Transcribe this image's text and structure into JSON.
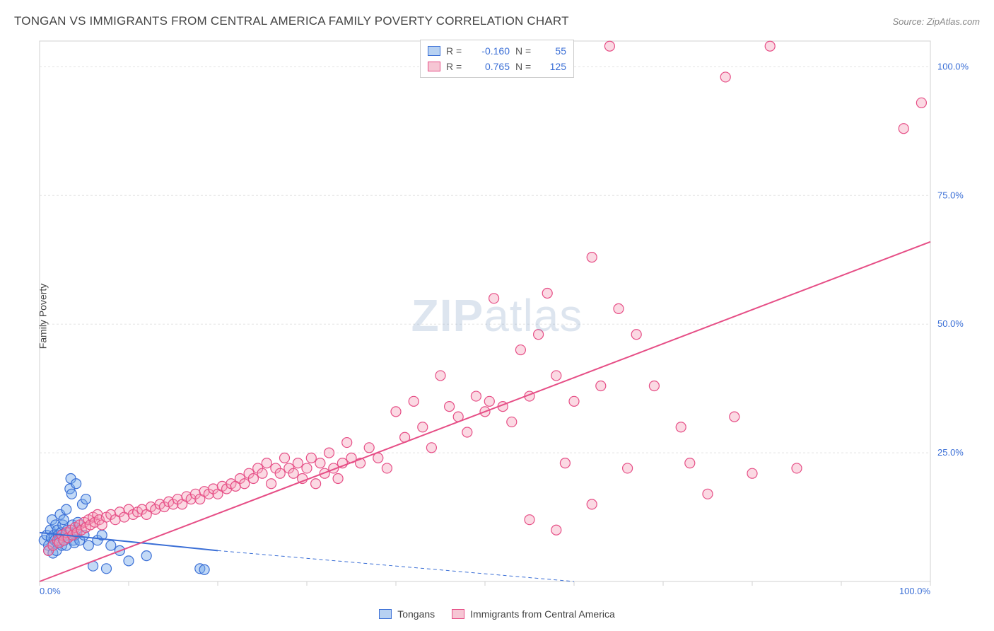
{
  "header": {
    "title": "TONGAN VS IMMIGRANTS FROM CENTRAL AMERICA FAMILY POVERTY CORRELATION CHART",
    "source": "Source: ZipAtlas.com"
  },
  "watermark": {
    "bold": "ZIP",
    "light": "atlas"
  },
  "chart": {
    "type": "scatter",
    "ylabel": "Family Poverty",
    "xlim": [
      0,
      100
    ],
    "ylim": [
      0,
      105
    ],
    "x_ticks": [
      0,
      10,
      20,
      30,
      40,
      50,
      60,
      70,
      80,
      90,
      100
    ],
    "x_tick_labels": {
      "0": "0.0%",
      "100": "100.0%"
    },
    "y_grid": [
      25,
      50,
      75,
      100
    ],
    "y_tick_labels": {
      "25": "25.0%",
      "50": "50.0%",
      "75": "75.0%",
      "100": "100.0%"
    },
    "background_color": "#ffffff",
    "grid_color": "#e3e3e3",
    "axis_color": "#d0d0d0",
    "tick_label_color": "#3b6fd6",
    "tick_label_fontsize": 13,
    "axis_label_color": "#444444",
    "axis_label_fontsize": 14,
    "marker_radius": 7,
    "marker_stroke_width": 1.2,
    "trend_line_width": 2,
    "series": [
      {
        "name": "Tongans",
        "fill": "rgba(120,170,235,0.45)",
        "stroke": "#3b6fd6",
        "swatch_fill": "#b7d1f2",
        "swatch_stroke": "#3b6fd6",
        "trend_solid": {
          "x1": 0,
          "y1": 9.5,
          "x2": 20,
          "y2": 6.0
        },
        "trend_dash": {
          "x1": 20,
          "y1": 6.0,
          "x2": 60,
          "y2": 0.0
        },
        "R": "-0.160",
        "N": "55",
        "points": [
          [
            0.5,
            8
          ],
          [
            0.8,
            9
          ],
          [
            1.0,
            7
          ],
          [
            1.0,
            6
          ],
          [
            1.2,
            10
          ],
          [
            1.3,
            8.5
          ],
          [
            1.4,
            12
          ],
          [
            1.5,
            7
          ],
          [
            1.5,
            5.5
          ],
          [
            1.6,
            9
          ],
          [
            1.7,
            8
          ],
          [
            1.8,
            11
          ],
          [
            1.9,
            6
          ],
          [
            2.0,
            7.5
          ],
          [
            2.0,
            10
          ],
          [
            2.1,
            9
          ],
          [
            2.2,
            8
          ],
          [
            2.3,
            13
          ],
          [
            2.4,
            9.5
          ],
          [
            2.5,
            7
          ],
          [
            2.5,
            8.5
          ],
          [
            2.6,
            11
          ],
          [
            2.7,
            12
          ],
          [
            2.8,
            8
          ],
          [
            2.9,
            9
          ],
          [
            3.0,
            7
          ],
          [
            3.0,
            14
          ],
          [
            3.1,
            10
          ],
          [
            3.2,
            8.5
          ],
          [
            3.3,
            9.5
          ],
          [
            3.4,
            18
          ],
          [
            3.5,
            20
          ],
          [
            3.6,
            17
          ],
          [
            3.7,
            11
          ],
          [
            3.8,
            8
          ],
          [
            3.9,
            7.5
          ],
          [
            4.0,
            9
          ],
          [
            4.1,
            19
          ],
          [
            4.2,
            10
          ],
          [
            4.3,
            11.5
          ],
          [
            4.5,
            8
          ],
          [
            4.8,
            15
          ],
          [
            5.0,
            9
          ],
          [
            5.2,
            16
          ],
          [
            5.5,
            7
          ],
          [
            6.0,
            3
          ],
          [
            6.5,
            8
          ],
          [
            7.0,
            9
          ],
          [
            7.5,
            2.5
          ],
          [
            8.0,
            7
          ],
          [
            9.0,
            6
          ],
          [
            10.0,
            4
          ],
          [
            12.0,
            5
          ],
          [
            18.0,
            2.5
          ],
          [
            18.5,
            2.3
          ]
        ]
      },
      {
        "name": "Immigrants from Central America",
        "fill": "rgba(245,160,185,0.40)",
        "stroke": "#e64e86",
        "swatch_fill": "#f6c6d4",
        "swatch_stroke": "#e64e86",
        "trend_solid": {
          "x1": 0,
          "y1": 0,
          "x2": 100,
          "y2": 66
        },
        "trend_dash": null,
        "R": "0.765",
        "N": "125",
        "points": [
          [
            1,
            6
          ],
          [
            1.5,
            7
          ],
          [
            2,
            8
          ],
          [
            2.2,
            7.5
          ],
          [
            2.5,
            9
          ],
          [
            2.7,
            8
          ],
          [
            3,
            9.5
          ],
          [
            3.2,
            8.5
          ],
          [
            3.5,
            10
          ],
          [
            3.7,
            9
          ],
          [
            4,
            10.5
          ],
          [
            4.2,
            9.5
          ],
          [
            4.5,
            11
          ],
          [
            4.7,
            10
          ],
          [
            5,
            11.5
          ],
          [
            5.2,
            10.5
          ],
          [
            5.5,
            12
          ],
          [
            5.7,
            11
          ],
          [
            6,
            12.5
          ],
          [
            6.2,
            11.5
          ],
          [
            6.5,
            13
          ],
          [
            6.7,
            12
          ],
          [
            7,
            11
          ],
          [
            7.5,
            12.5
          ],
          [
            8,
            13
          ],
          [
            8.5,
            12
          ],
          [
            9,
            13.5
          ],
          [
            9.5,
            12.5
          ],
          [
            10,
            14
          ],
          [
            10.5,
            13
          ],
          [
            11,
            13.5
          ],
          [
            11.5,
            14
          ],
          [
            12,
            13
          ],
          [
            12.5,
            14.5
          ],
          [
            13,
            14
          ],
          [
            13.5,
            15
          ],
          [
            14,
            14.5
          ],
          [
            14.5,
            15.5
          ],
          [
            15,
            15
          ],
          [
            15.5,
            16
          ],
          [
            16,
            15
          ],
          [
            16.5,
            16.5
          ],
          [
            17,
            16
          ],
          [
            17.5,
            17
          ],
          [
            18,
            16
          ],
          [
            18.5,
            17.5
          ],
          [
            19,
            17
          ],
          [
            19.5,
            18
          ],
          [
            20,
            17
          ],
          [
            20.5,
            18.5
          ],
          [
            21,
            18
          ],
          [
            21.5,
            19
          ],
          [
            22,
            18.5
          ],
          [
            22.5,
            20
          ],
          [
            23,
            19
          ],
          [
            23.5,
            21
          ],
          [
            24,
            20
          ],
          [
            24.5,
            22
          ],
          [
            25,
            21
          ],
          [
            25.5,
            23
          ],
          [
            26,
            19
          ],
          [
            26.5,
            22
          ],
          [
            27,
            21
          ],
          [
            27.5,
            24
          ],
          [
            28,
            22
          ],
          [
            28.5,
            21
          ],
          [
            29,
            23
          ],
          [
            29.5,
            20
          ],
          [
            30,
            22
          ],
          [
            30.5,
            24
          ],
          [
            31,
            19
          ],
          [
            31.5,
            23
          ],
          [
            32,
            21
          ],
          [
            32.5,
            25
          ],
          [
            33,
            22
          ],
          [
            33.5,
            20
          ],
          [
            34,
            23
          ],
          [
            34.5,
            27
          ],
          [
            35,
            24
          ],
          [
            36,
            23
          ],
          [
            37,
            26
          ],
          [
            38,
            24
          ],
          [
            39,
            22
          ],
          [
            40,
            33
          ],
          [
            41,
            28
          ],
          [
            42,
            35
          ],
          [
            43,
            30
          ],
          [
            44,
            26
          ],
          [
            45,
            40
          ],
          [
            46,
            34
          ],
          [
            47,
            32
          ],
          [
            48,
            29
          ],
          [
            49,
            36
          ],
          [
            50,
            33
          ],
          [
            50.5,
            35
          ],
          [
            51,
            55
          ],
          [
            52,
            34
          ],
          [
            53,
            31
          ],
          [
            54,
            45
          ],
          [
            55,
            36
          ],
          [
            56,
            48
          ],
          [
            57,
            56
          ],
          [
            58,
            40
          ],
          [
            59,
            23
          ],
          [
            60,
            35
          ],
          [
            62,
            63
          ],
          [
            63,
            38
          ],
          [
            65,
            53
          ],
          [
            66,
            22
          ],
          [
            67,
            48
          ],
          [
            69,
            38
          ],
          [
            72,
            30
          ],
          [
            73,
            23
          ],
          [
            75,
            17
          ],
          [
            78,
            32
          ],
          [
            80,
            21
          ],
          [
            85,
            22
          ],
          [
            64,
            104
          ],
          [
            77,
            98
          ],
          [
            99,
            93
          ],
          [
            82,
            104
          ],
          [
            97,
            88
          ],
          [
            55,
            12
          ],
          [
            58,
            10
          ],
          [
            62,
            15
          ]
        ]
      }
    ]
  },
  "legend_bottom": {
    "items": [
      {
        "label": "Tongans",
        "fill": "#b7d1f2",
        "stroke": "#3b6fd6"
      },
      {
        "label": "Immigrants from Central America",
        "fill": "#f6c6d4",
        "stroke": "#e64e86"
      }
    ]
  }
}
